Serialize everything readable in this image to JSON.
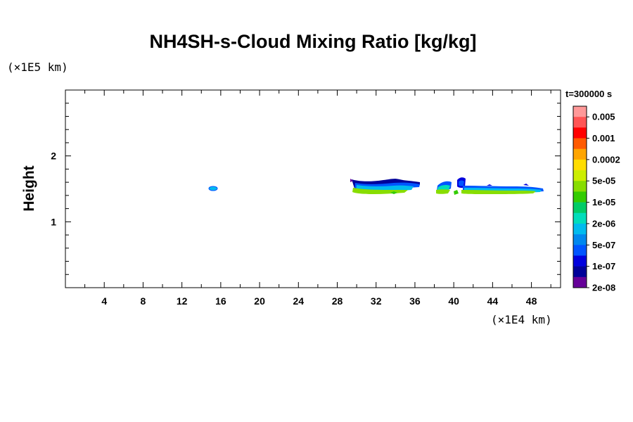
{
  "chart_data": {
    "type": "heatmap",
    "title": "NH4SH-s-Cloud Mixing Ratio [kg/kg]",
    "ylabel": "Height",
    "xunit": "(×1E4 km)",
    "yunit": "(×1E5 km)",
    "time_label": "t=300000 s",
    "xlim": [
      0,
      51
    ],
    "ylim": [
      0,
      3
    ],
    "x_ticks": [
      4,
      8,
      12,
      16,
      20,
      24,
      28,
      32,
      36,
      40,
      44,
      48
    ],
    "y_ticks": [
      1,
      2
    ],
    "colorbar": {
      "colors": [
        "#ff9999",
        "#ff5555",
        "#ff0000",
        "#ff5a00",
        "#ffa500",
        "#ffdd00",
        "#ccee00",
        "#88dd00",
        "#33cc00",
        "#00cc66",
        "#00ddbb",
        "#00bbee",
        "#0088ee",
        "#0055ff",
        "#0000dd",
        "#000099",
        "#660099"
      ],
      "labels": [
        "0.005",
        "0.001",
        "0.0002",
        "5e-05",
        "1e-05",
        "2e-06",
        "5e-07",
        "1e-07",
        "2e-08"
      ]
    },
    "cloud_features": [
      {
        "x_range": [
          15.0,
          15.8
        ],
        "y_range": [
          1.47,
          1.52
        ],
        "value": "5e-07"
      },
      {
        "x_range": [
          29.5,
          36.5
        ],
        "y_range": [
          1.43,
          1.62
        ],
        "value": "2e-08 to 1e-05"
      },
      {
        "x_range": [
          38.5,
          49.0
        ],
        "y_range": [
          1.43,
          1.66
        ],
        "value": "2e-08 to 1e-05"
      }
    ]
  }
}
